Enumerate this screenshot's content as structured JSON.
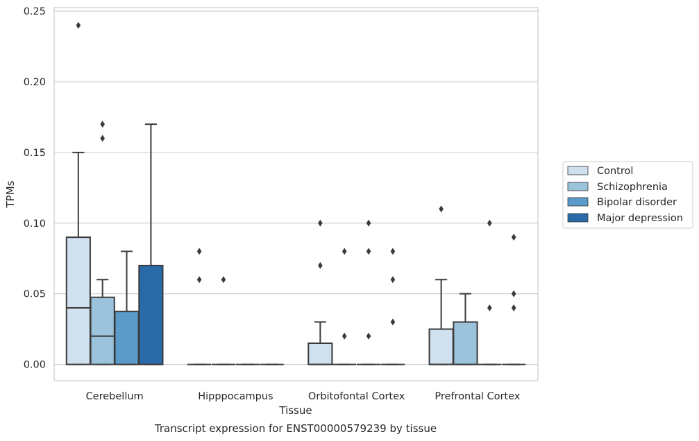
{
  "chart_data": {
    "type": "boxplot",
    "title": "Transcript expression for ENST00000579239 by tissue",
    "xlabel": "Tissue",
    "ylabel": "TPMs",
    "ylim": [
      -0.0115,
      0.2525
    ],
    "yticks": [
      0.0,
      0.05,
      0.1,
      0.15,
      0.2,
      0.25
    ],
    "ytick_labels": [
      "0.00",
      "0.05",
      "0.10",
      "0.15",
      "0.20",
      "0.25"
    ],
    "grid": "horizontal",
    "legend_position": "right",
    "categories": [
      "Cerebellum",
      "Hipppocampus",
      "Orbitofontal Cortex",
      "Prefrontal Cortex"
    ],
    "series": [
      {
        "name": "Control",
        "color": "#d0e0ef",
        "boxes": [
          {
            "q1": 0.0,
            "median": 0.04,
            "q3": 0.09,
            "whislo": 0.0,
            "whishi": 0.15,
            "fliers": [
              0.24
            ]
          },
          {
            "q1": 0.0,
            "median": 0.0,
            "q3": 0.0,
            "whislo": 0.0,
            "whishi": 0.0,
            "fliers": [
              0.06,
              0.08
            ]
          },
          {
            "q1": 0.0,
            "median": 0.0,
            "q3": 0.015,
            "whislo": 0.0,
            "whishi": 0.03,
            "fliers": [
              0.07,
              0.1
            ]
          },
          {
            "q1": 0.0,
            "median": 0.0,
            "q3": 0.025,
            "whislo": 0.0,
            "whishi": 0.06,
            "fliers": [
              0.11
            ]
          }
        ]
      },
      {
        "name": "Schizophrenia",
        "color": "#9cc3dc",
        "boxes": [
          {
            "q1": 0.0,
            "median": 0.02,
            "q3": 0.0475,
            "whislo": 0.0,
            "whishi": 0.06,
            "fliers": [
              0.16,
              0.17
            ]
          },
          {
            "q1": 0.0,
            "median": 0.0,
            "q3": 0.0,
            "whislo": 0.0,
            "whishi": 0.0,
            "fliers": [
              0.06
            ]
          },
          {
            "q1": 0.0,
            "median": 0.0,
            "q3": 0.0,
            "whislo": 0.0,
            "whishi": 0.0,
            "fliers": [
              0.02,
              0.08
            ]
          },
          {
            "q1": 0.0,
            "median": 0.0,
            "q3": 0.03,
            "whislo": 0.0,
            "whishi": 0.05,
            "fliers": []
          }
        ]
      },
      {
        "name": "Bipolar disorder",
        "color": "#5b9bc9",
        "boxes": [
          {
            "q1": 0.0,
            "median": 0.0,
            "q3": 0.0375,
            "whislo": 0.0,
            "whishi": 0.08,
            "fliers": []
          },
          {
            "q1": 0.0,
            "median": 0.0,
            "q3": 0.0,
            "whislo": 0.0,
            "whishi": 0.0,
            "fliers": []
          },
          {
            "q1": 0.0,
            "median": 0.0,
            "q3": 0.0,
            "whislo": 0.0,
            "whishi": 0.0,
            "fliers": [
              0.02,
              0.08,
              0.1
            ]
          },
          {
            "q1": 0.0,
            "median": 0.0,
            "q3": 0.0,
            "whislo": 0.0,
            "whishi": 0.0,
            "fliers": [
              0.04,
              0.1
            ]
          }
        ]
      },
      {
        "name": "Major depression",
        "color": "#2a6aa8",
        "boxes": [
          {
            "q1": 0.0,
            "median": 0.0,
            "q3": 0.07,
            "whislo": 0.0,
            "whishi": 0.17,
            "fliers": []
          },
          {
            "q1": 0.0,
            "median": 0.0,
            "q3": 0.0,
            "whislo": 0.0,
            "whishi": 0.0,
            "fliers": []
          },
          {
            "q1": 0.0,
            "median": 0.0,
            "q3": 0.0,
            "whislo": 0.0,
            "whishi": 0.0,
            "fliers": [
              0.03,
              0.06,
              0.08
            ]
          },
          {
            "q1": 0.0,
            "median": 0.0,
            "q3": 0.0,
            "whislo": 0.0,
            "whishi": 0.0,
            "fliers": [
              0.04,
              0.05,
              0.09
            ]
          }
        ]
      }
    ]
  }
}
